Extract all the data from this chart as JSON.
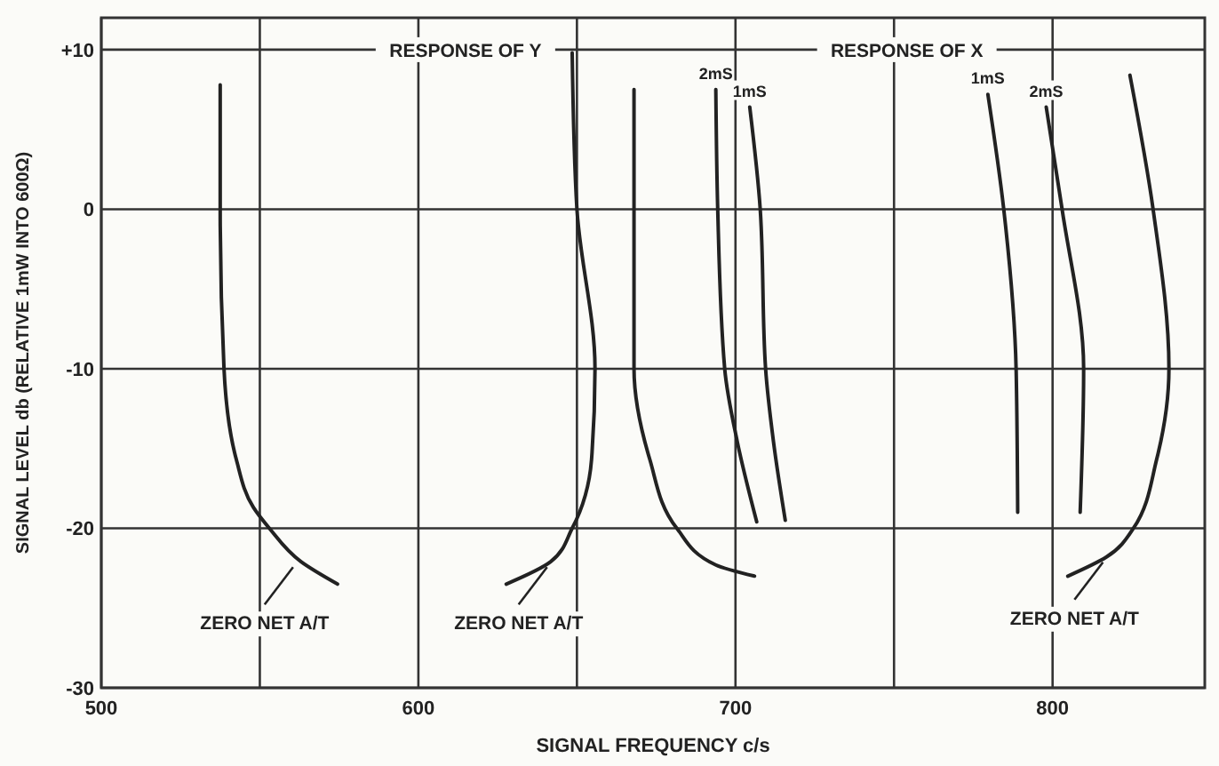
{
  "chart_data": {
    "type": "line",
    "xlabel": "SIGNAL FREQUENCY   c/s",
    "ylabel": "SIGNAL LEVEL  db (RELATIVE 1mW INTO 600Ω)",
    "xlim": [
      500,
      848
    ],
    "ylim": [
      -30,
      12
    ],
    "xticks": [
      500,
      {
        "value": 550,
        "label": null
      },
      600,
      {
        "value": 650,
        "label": null
      },
      700,
      {
        "value": 750,
        "label": null
      },
      800
    ],
    "yticks": [
      -30,
      -20,
      -10,
      0,
      {
        "value": 10,
        "label": "+10"
      }
    ],
    "grid": true,
    "marker": "none",
    "line_style": "solid",
    "series": [
      {
        "color": "#222222",
        "x": [
          537.5,
          537.5,
          538.7,
          542.6,
          548,
          553,
          563,
          574.5
        ],
        "values": [
          7.8,
          0,
          -10,
          -15.7,
          -18.7,
          -20,
          -22.1,
          -23.5
        ]
      },
      {
        "color": "#222222",
        "x": [
          648.5,
          650,
          655.7,
          654.6,
          648.5,
          641.7,
          627.7
        ],
        "values": [
          9.8,
          0,
          -10,
          -15.7,
          -20,
          -22.1,
          -23.5
        ]
      },
      {
        "color": "#222222",
        "x": [
          668,
          668,
          668,
          673,
          681.5,
          693.8,
          706
        ],
        "values": [
          7.5,
          0,
          -10,
          -15.7,
          -20,
          -22.3,
          -23
        ]
      },
      {
        "name": "2mS",
        "color": "#222222",
        "x": [
          693.8,
          694.4,
          696.6,
          700.6,
          706.7
        ],
        "values": [
          7.5,
          0,
          -10,
          -14.6,
          -19.6
        ]
      },
      {
        "name": "1mS",
        "color": "#222222",
        "x": [
          704.5,
          707.8,
          709.5,
          712,
          715.7
        ],
        "values": [
          6.4,
          0,
          -10,
          -14.6,
          -19.5
        ]
      },
      {
        "name": "1mS",
        "color": "#222222",
        "x": [
          779.6,
          784.6,
          788.5,
          789
        ],
        "values": [
          7.2,
          0,
          -10,
          -19
        ]
      },
      {
        "name": "2mS",
        "color": "#222222",
        "x": [
          798,
          803,
          809.8,
          808.7
        ],
        "values": [
          6.4,
          0,
          -10,
          -19
        ]
      },
      {
        "color": "#222222",
        "x": [
          824.4,
          831.7,
          836.7,
          832.8,
          825.5,
          817,
          804.8
        ],
        "values": [
          8.4,
          0,
          -10,
          -15.7,
          -20,
          -21.8,
          -23
        ]
      }
    ],
    "annotations": [
      "RESPONSE OF Y",
      "RESPONSE OF X",
      {
        "text": "ZERO NET A/T",
        "x": 561.6,
        "y": -22.1
      },
      {
        "text": "ZERO NET A/T",
        "x": 641.7,
        "y": -22.1
      },
      {
        "text": "ZERO NET A/T",
        "x": 817,
        "y": -21.8
      }
    ]
  }
}
